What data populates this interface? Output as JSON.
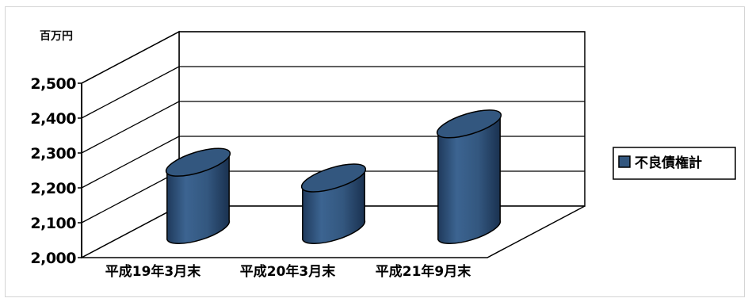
{
  "chart_data": {
    "type": "bar",
    "style": "3d-cylinder",
    "unit_label": "百万円",
    "categories": [
      "平成19年3月末",
      "平成20年3月末",
      "平成21年9月末"
    ],
    "series": [
      {
        "name": "不良債権計",
        "values": [
          2245,
          2200,
          2355
        ],
        "color": "#33577f"
      }
    ],
    "ylim": [
      2000,
      2500
    ],
    "yticks": [
      2000,
      2100,
      2200,
      2300,
      2400,
      2500
    ],
    "ytick_labels": [
      "2,000",
      "2,100",
      "2,200",
      "2,300",
      "2,400",
      "2,500"
    ],
    "grid": true,
    "legend_position": "right"
  }
}
